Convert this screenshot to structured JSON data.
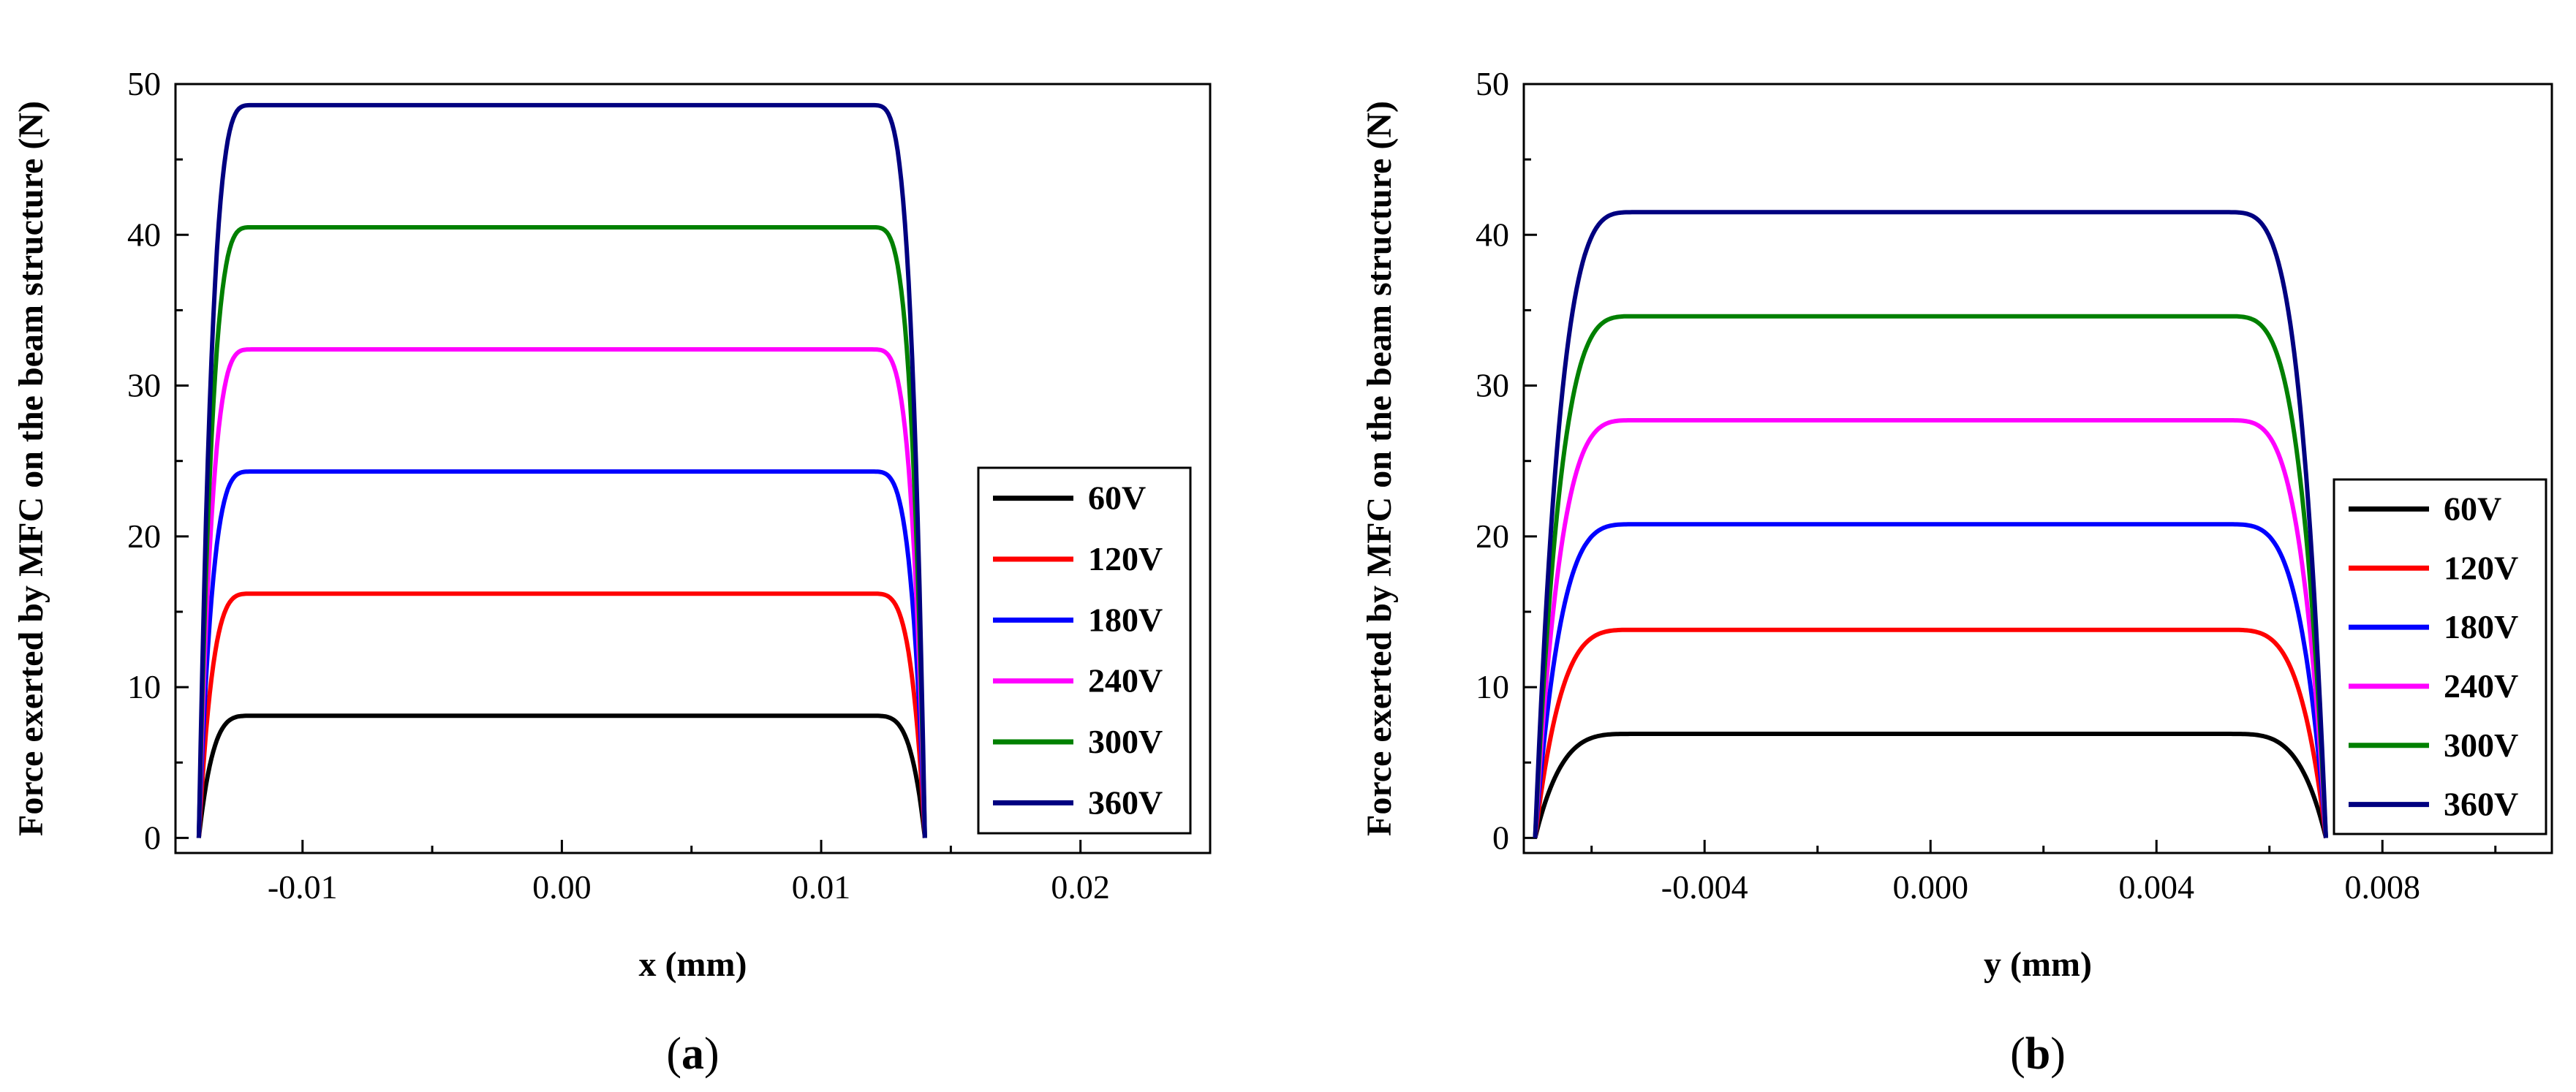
{
  "chart_data": [
    {
      "panel": "(a)",
      "panel_letter": "a",
      "type": "line",
      "xlabel": "x (mm)",
      "ylabel": "Force exerted by MFC on the beam structure (N)",
      "xlim": [
        -0.0149,
        0.025
      ],
      "ylim": [
        -1,
        50
      ],
      "x_ticks": [
        -0.01,
        0.0,
        0.01,
        0.02
      ],
      "x_tick_labels": [
        "-0.01",
        "0.00",
        "0.01",
        "0.02"
      ],
      "y_ticks": [
        0,
        10,
        20,
        30,
        40,
        50
      ],
      "y_tick_labels": [
        "0",
        "10",
        "20",
        "30",
        "40",
        "50"
      ],
      "curve_domain": [
        -0.014,
        0.014
      ],
      "ramp_width": 0.0021,
      "grid": false,
      "legend_position": "right",
      "series": [
        {
          "name": "60V",
          "color": "#000000",
          "plateau": 8.1
        },
        {
          "name": "120V",
          "color": "#ff0000",
          "plateau": 16.2
        },
        {
          "name": "180V",
          "color": "#0000ff",
          "plateau": 24.3
        },
        {
          "name": "240V",
          "color": "#ff00ff",
          "plateau": 32.4
        },
        {
          "name": "300V",
          "color": "#008000",
          "plateau": 40.5
        },
        {
          "name": "360V",
          "color": "#000080",
          "plateau": 48.6
        }
      ]
    },
    {
      "panel": "(b)",
      "panel_letter": "b",
      "type": "line",
      "xlabel": "y (mm)",
      "ylabel": "Force exerted by MFC on the beam structure (N)",
      "xlim": [
        -0.0072,
        0.011
      ],
      "ylim": [
        -1,
        50
      ],
      "x_ticks": [
        -0.004,
        0.0,
        0.004,
        0.008
      ],
      "x_tick_labels": [
        "-0.004",
        "0.000",
        "0.004",
        "0.008"
      ],
      "y_ticks": [
        0,
        10,
        20,
        30,
        40,
        50
      ],
      "y_tick_labels": [
        "0",
        "10",
        "20",
        "30",
        "40",
        "50"
      ],
      "curve_domain": [
        -0.007,
        0.007
      ],
      "ramp_width": 0.0018,
      "grid": false,
      "legend_position": "right",
      "series": [
        {
          "name": "60V",
          "color": "#000000",
          "plateau": 6.9
        },
        {
          "name": "120V",
          "color": "#ff0000",
          "plateau": 13.8
        },
        {
          "name": "180V",
          "color": "#0000ff",
          "plateau": 20.8
        },
        {
          "name": "240V",
          "color": "#ff00ff",
          "plateau": 27.7
        },
        {
          "name": "300V",
          "color": "#008000",
          "plateau": 34.6
        },
        {
          "name": "360V",
          "color": "#000080",
          "plateau": 41.5
        }
      ]
    }
  ]
}
